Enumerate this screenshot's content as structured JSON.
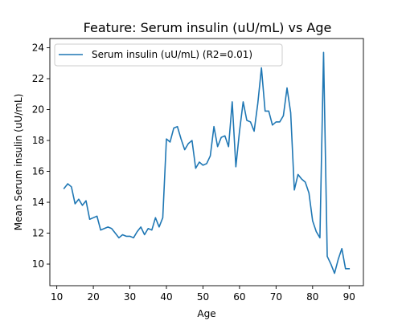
{
  "chart_data": {
    "type": "line",
    "title": "Feature: Serum insulin (uU/mL) vs Age",
    "xlabel": "Age",
    "ylabel": "Mean Serum insulin (uU/mL)",
    "xlim": [
      8.1,
      93.9
    ],
    "ylim": [
      8.6,
      24.6
    ],
    "xticks": [
      10,
      20,
      30,
      40,
      50,
      60,
      70,
      80,
      90
    ],
    "yticks": [
      10,
      12,
      14,
      16,
      18,
      20,
      22,
      24
    ],
    "grid": false,
    "legend_position": "upper-left",
    "series": [
      {
        "name": "Serum insulin (uU/mL) (R2=0.01)",
        "color": "#1f77b4",
        "x": [
          12,
          13,
          14,
          15,
          16,
          17,
          18,
          19,
          20,
          21,
          22,
          23,
          24,
          25,
          26,
          27,
          28,
          29,
          30,
          31,
          32,
          33,
          34,
          35,
          36,
          37,
          38,
          39,
          40,
          41,
          42,
          43,
          44,
          45,
          46,
          47,
          48,
          49,
          50,
          51,
          52,
          53,
          54,
          55,
          56,
          57,
          58,
          59,
          60,
          61,
          62,
          63,
          64,
          65,
          66,
          67,
          68,
          69,
          70,
          71,
          72,
          73,
          74,
          75,
          76,
          77,
          78,
          79,
          80,
          81,
          82,
          83,
          84,
          85,
          86,
          87,
          88,
          89,
          90
        ],
        "values": [
          14.9,
          15.2,
          15.0,
          13.9,
          14.2,
          13.8,
          14.1,
          12.9,
          13.0,
          13.1,
          12.2,
          12.3,
          12.4,
          12.3,
          12.0,
          11.7,
          11.9,
          11.8,
          11.8,
          11.7,
          12.1,
          12.4,
          11.9,
          12.3,
          12.2,
          13.0,
          12.4,
          13.0,
          18.1,
          17.9,
          18.8,
          18.9,
          18.1,
          17.4,
          17.8,
          18.0,
          16.2,
          16.6,
          16.4,
          16.5,
          17.0,
          18.9,
          17.6,
          18.2,
          18.3,
          17.6,
          20.5,
          16.3,
          18.6,
          20.5,
          19.3,
          19.2,
          18.6,
          20.4,
          22.7,
          19.9,
          19.9,
          19.0,
          19.2,
          19.2,
          19.6,
          21.4,
          19.8,
          14.8,
          15.8,
          15.5,
          15.3,
          14.6,
          12.8,
          12.1,
          11.7,
          23.7,
          10.5,
          10.0,
          9.4,
          10.3,
          11.0,
          9.7,
          9.7
        ]
      }
    ]
  }
}
